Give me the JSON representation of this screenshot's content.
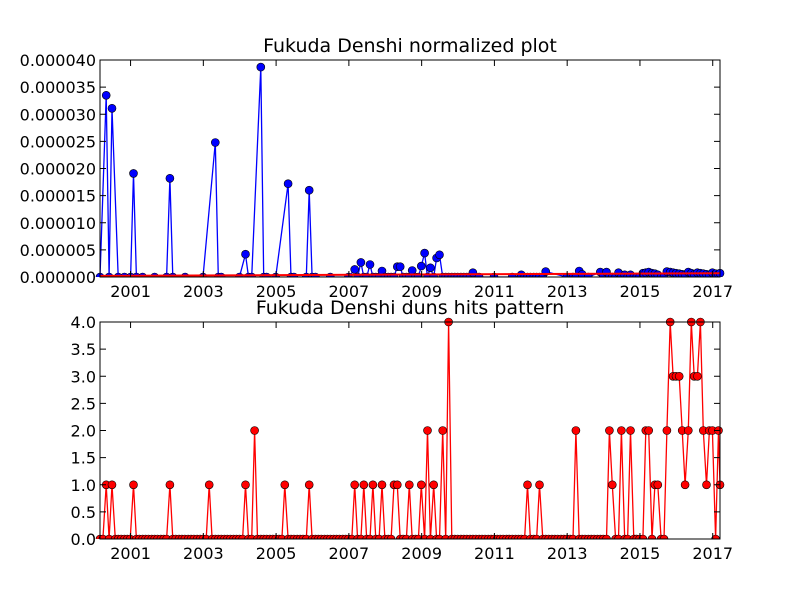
{
  "chart_data": [
    {
      "type": "line",
      "title": "Fukuda Denshi normalized plot",
      "xlabel": "",
      "ylabel": "",
      "xlim": [
        2000.16,
        2017.2
      ],
      "ylim": [
        0,
        4e-05
      ],
      "x_ticks": [
        {
          "value": 2001,
          "label": "2001"
        },
        {
          "value": 2003,
          "label": "2003"
        },
        {
          "value": 2005,
          "label": "2005"
        },
        {
          "value": 2007,
          "label": "2007"
        },
        {
          "value": 2009,
          "label": "2009"
        },
        {
          "value": 2011,
          "label": "2011"
        },
        {
          "value": 2013,
          "label": "2013"
        },
        {
          "value": 2015,
          "label": "2015"
        },
        {
          "value": 2017,
          "label": "2017"
        }
      ],
      "y_ticks": [
        {
          "value": 0.0,
          "label": "0.000000"
        },
        {
          "value": 5e-06,
          "label": "0.000005"
        },
        {
          "value": 1e-05,
          "label": "0.000010"
        },
        {
          "value": 1.5e-05,
          "label": "0.000015"
        },
        {
          "value": 2e-05,
          "label": "0.000020"
        },
        {
          "value": 2.5e-05,
          "label": "0.000025"
        },
        {
          "value": 3e-05,
          "label": "0.000030"
        },
        {
          "value": 3.5e-05,
          "label": "0.000035"
        },
        {
          "value": 4e-05,
          "label": "0.000040"
        }
      ],
      "grid": false,
      "series": [
        {
          "color": "#0000ff",
          "marker": "circle",
          "x": [
            2000.16,
            2000.33,
            2000.41,
            2000.49,
            2000.66,
            2000.83,
            2001.0,
            2001.08,
            2001.16,
            2001.33,
            2001.66,
            2001.99,
            2002.08,
            2002.16,
            2002.5,
            2002.99,
            2003.33,
            2003.41,
            2003.49,
            2003.99,
            2004.16,
            2004.24,
            2004.33,
            2004.58,
            2004.66,
            2004.74,
            2004.99,
            2005.33,
            2005.41,
            2005.49,
            2005.83,
            2005.91,
            2005.99,
            2006.08,
            2006.49,
            2006.99,
            2007.16,
            2007.24,
            2007.33,
            2007.41,
            2007.49,
            2007.58,
            2007.66,
            2007.74,
            2007.83,
            2007.91,
            2007.99,
            2008.08,
            2008.16,
            2008.24,
            2008.33,
            2008.41,
            2008.49,
            2008.58,
            2008.66,
            2008.74,
            2008.83,
            2008.91,
            2008.99,
            2009.08,
            2009.16,
            2009.24,
            2009.33,
            2009.41,
            2009.49,
            2009.58,
            2009.66,
            2009.74,
            2009.83,
            2009.91,
            2009.99,
            2010.08,
            2010.16,
            2010.24,
            2010.33,
            2010.41,
            2010.58,
            2010.99,
            2011.49,
            2011.74,
            2011.83,
            2011.91,
            2011.99,
            2012.08,
            2012.16,
            2012.24,
            2012.33,
            2012.41,
            2012.99,
            2013.16,
            2013.24,
            2013.33,
            2013.41,
            2013.58,
            2013.91,
            2013.99,
            2014.08,
            2014.16,
            2014.24,
            2014.33,
            2014.41,
            2014.49,
            2014.58,
            2014.66,
            2014.74,
            2014.83,
            2014.91,
            2014.99,
            2015.08,
            2015.16,
            2015.24,
            2015.33,
            2015.41,
            2015.49,
            2015.58,
            2015.66,
            2015.74,
            2015.83,
            2015.91,
            2015.99,
            2016.08,
            2016.16,
            2016.24,
            2016.33,
            2016.41,
            2016.49,
            2016.58,
            2016.66,
            2016.74,
            2016.83,
            2016.91,
            2016.99,
            2017.08,
            2017.16,
            2017.2
          ],
          "values": [
            0.0,
            3.35e-05,
            0.0,
            3.11e-05,
            0.0,
            0.0,
            0.0,
            1.91e-05,
            0.0,
            0.0,
            0.0,
            0.0,
            1.82e-05,
            0.0,
            0.0,
            0.0,
            2.48e-05,
            0.0,
            0.0,
            0.0,
            4.2e-06,
            0.0,
            0.0,
            3.87e-05,
            0.0,
            0.0,
            0.0,
            1.72e-05,
            0.0,
            0.0,
            0.0,
            1.6e-05,
            0.0,
            0.0,
            0.0,
            0.0,
            1.4e-06,
            0.0,
            2.7e-06,
            0.0,
            0.0,
            2.3e-06,
            0.0,
            0.0,
            0.0,
            1.1e-06,
            0.0,
            0.0,
            0.0,
            0.0,
            1.9e-06,
            1.9e-06,
            0.0,
            0.0,
            0.0,
            1.2e-06,
            0.0,
            0.0,
            2e-06,
            4.4e-06,
            0.0,
            1.7e-06,
            0.0,
            3.5e-06,
            4.1e-06,
            0.0,
            0.0,
            0.0,
            0.0,
            0.0,
            0.0,
            0.0,
            0.0,
            0.0,
            0.0,
            8e-07,
            0.0,
            0.0,
            0.0,
            4e-07,
            0.0,
            0.0,
            0.0,
            0.0,
            0.0,
            0.0,
            0.0,
            1e-06,
            0.0,
            0.0,
            0.0,
            1.1e-06,
            5e-07,
            0.0,
            9e-07,
            0.0,
            9e-07,
            0.0,
            0.0,
            0.0,
            8e-07,
            0.0,
            4e-07,
            0.0,
            4e-07,
            0.0,
            0.0,
            0.0,
            7e-07,
            8e-07,
            9e-07,
            7e-07,
            6e-07,
            4e-07,
            0.0,
            0.0,
            1e-06,
            9e-07,
            8e-07,
            7e-07,
            6e-07,
            5e-07,
            4e-07,
            9e-07,
            7e-07,
            5e-07,
            8e-07,
            7e-07,
            6e-07,
            5e-07,
            4e-07,
            8e-07,
            6e-07,
            5e-07,
            7e-07
          ],
          "stems": true
        },
        {
          "color": "#ff0000",
          "marker": "none",
          "x": [
            2000.16,
            2017.2
          ],
          "values": [
            2e-07,
            7e-07
          ]
        }
      ]
    },
    {
      "type": "line",
      "title": "Fukuda Denshi duns hits pattern",
      "xlabel": "",
      "ylabel": "",
      "xlim": [
        2000.16,
        2017.2
      ],
      "ylim": [
        0,
        4
      ],
      "x_ticks": [
        {
          "value": 2001,
          "label": "2001"
        },
        {
          "value": 2003,
          "label": "2003"
        },
        {
          "value": 2005,
          "label": "2005"
        },
        {
          "value": 2007,
          "label": "2007"
        },
        {
          "value": 2009,
          "label": "2009"
        },
        {
          "value": 2011,
          "label": "2011"
        },
        {
          "value": 2013,
          "label": "2013"
        },
        {
          "value": 2015,
          "label": "2015"
        },
        {
          "value": 2017,
          "label": "2017"
        }
      ],
      "y_ticks": [
        {
          "value": 0.0,
          "label": "0.0"
        },
        {
          "value": 0.5,
          "label": "0.5"
        },
        {
          "value": 1.0,
          "label": "1.0"
        },
        {
          "value": 1.5,
          "label": "1.5"
        },
        {
          "value": 2.0,
          "label": "2.0"
        },
        {
          "value": 2.5,
          "label": "2.5"
        },
        {
          "value": 3.0,
          "label": "3.0"
        },
        {
          "value": 3.5,
          "label": "3.5"
        },
        {
          "value": 4.0,
          "label": "4.0"
        }
      ],
      "grid": false,
      "series": [
        {
          "color": "#ff0000",
          "marker": "circle",
          "x": [
            2000.16,
            2000.24,
            2000.33,
            2000.41,
            2000.49,
            2000.58,
            2000.66,
            2000.74,
            2000.83,
            2000.91,
            2000.99,
            2001.08,
            2001.16,
            2001.24,
            2001.33,
            2001.41,
            2001.49,
            2001.58,
            2001.66,
            2001.74,
            2001.83,
            2001.91,
            2001.99,
            2002.08,
            2002.16,
            2002.24,
            2002.33,
            2002.41,
            2002.49,
            2002.58,
            2002.66,
            2002.74,
            2002.83,
            2002.91,
            2002.99,
            2003.08,
            2003.16,
            2003.24,
            2003.33,
            2003.41,
            2003.49,
            2003.58,
            2003.66,
            2003.74,
            2003.83,
            2003.91,
            2003.99,
            2004.08,
            2004.16,
            2004.24,
            2004.33,
            2004.41,
            2004.49,
            2004.58,
            2004.66,
            2004.74,
            2004.83,
            2004.91,
            2004.99,
            2005.08,
            2005.16,
            2005.24,
            2005.33,
            2005.41,
            2005.49,
            2005.58,
            2005.66,
            2005.74,
            2005.83,
            2005.91,
            2005.99,
            2006.08,
            2006.16,
            2006.24,
            2006.33,
            2006.41,
            2006.49,
            2006.58,
            2006.66,
            2006.74,
            2006.83,
            2006.91,
            2006.99,
            2007.08,
            2007.16,
            2007.24,
            2007.33,
            2007.41,
            2007.49,
            2007.58,
            2007.66,
            2007.74,
            2007.83,
            2007.91,
            2007.99,
            2008.08,
            2008.16,
            2008.24,
            2008.33,
            2008.41,
            2008.49,
            2008.58,
            2008.66,
            2008.74,
            2008.83,
            2008.91,
            2008.99,
            2009.08,
            2009.16,
            2009.24,
            2009.33,
            2009.41,
            2009.49,
            2009.58,
            2009.66,
            2009.74,
            2009.83,
            2009.91,
            2009.99,
            2010.08,
            2010.16,
            2010.24,
            2010.33,
            2010.41,
            2010.49,
            2010.58,
            2010.66,
            2010.74,
            2010.83,
            2010.91,
            2010.99,
            2011.08,
            2011.16,
            2011.24,
            2011.33,
            2011.41,
            2011.49,
            2011.58,
            2011.66,
            2011.74,
            2011.83,
            2011.91,
            2011.99,
            2012.08,
            2012.16,
            2012.24,
            2012.33,
            2012.41,
            2012.49,
            2012.58,
            2012.66,
            2012.74,
            2012.83,
            2012.91,
            2012.99,
            2013.08,
            2013.16,
            2013.24,
            2013.33,
            2013.41,
            2013.49,
            2013.58,
            2013.66,
            2013.74,
            2013.83,
            2013.91,
            2013.99,
            2014.08,
            2014.16,
            2014.24,
            2014.33,
            2014.41,
            2014.49,
            2014.58,
            2014.66,
            2014.74,
            2014.83,
            2014.91,
            2014.99,
            2015.08,
            2015.16,
            2015.24,
            2015.33,
            2015.41,
            2015.49,
            2015.58,
            2015.66,
            2015.74,
            2015.83,
            2015.91,
            2015.99,
            2016.08,
            2016.16,
            2016.24,
            2016.33,
            2016.41,
            2016.49,
            2016.58,
            2016.66,
            2016.74,
            2016.83,
            2016.91,
            2016.99,
            2017.08,
            2017.16,
            2017.2
          ],
          "values": [
            0,
            0,
            1,
            0,
            1,
            0,
            0,
            0,
            0,
            0,
            0,
            1,
            0,
            0,
            0,
            0,
            0,
            0,
            0,
            0,
            0,
            0,
            0,
            1,
            0,
            0,
            0,
            0,
            0,
            0,
            0,
            0,
            0,
            0,
            0,
            0,
            1,
            0,
            0,
            0,
            0,
            0,
            0,
            0,
            0,
            0,
            0,
            0,
            1,
            0,
            0,
            2,
            0,
            0,
            0,
            0,
            0,
            0,
            0,
            0,
            0,
            1,
            0,
            0,
            0,
            0,
            0,
            0,
            0,
            1,
            0,
            0,
            0,
            0,
            0,
            0,
            0,
            0,
            0,
            0,
            0,
            0,
            0,
            0,
            1,
            0,
            0,
            1,
            0,
            0,
            1,
            0,
            0,
            1,
            0,
            0,
            0,
            1,
            1,
            0,
            0,
            0,
            1,
            0,
            0,
            0,
            1,
            0,
            2,
            0,
            1,
            0,
            0,
            2,
            0,
            4,
            0,
            0,
            0,
            0,
            0,
            0,
            0,
            0,
            0,
            0,
            0,
            0,
            0,
            0,
            0,
            0,
            0,
            0,
            0,
            0,
            0,
            0,
            0,
            0,
            0,
            1,
            0,
            0,
            0,
            1,
            0,
            0,
            0,
            0,
            0,
            0,
            0,
            0,
            0,
            0,
            0,
            2,
            0,
            0,
            0,
            0,
            0,
            0,
            0,
            0,
            0,
            0,
            2,
            1,
            0,
            0,
            2,
            0,
            0,
            2,
            0,
            0,
            0,
            0,
            2,
            2,
            0,
            1,
            1,
            0,
            0,
            2,
            4,
            3,
            3,
            3,
            2,
            1,
            2,
            4,
            3,
            3,
            4,
            2,
            1,
            2,
            2,
            0,
            2,
            1
          ]
        }
      ]
    }
  ]
}
